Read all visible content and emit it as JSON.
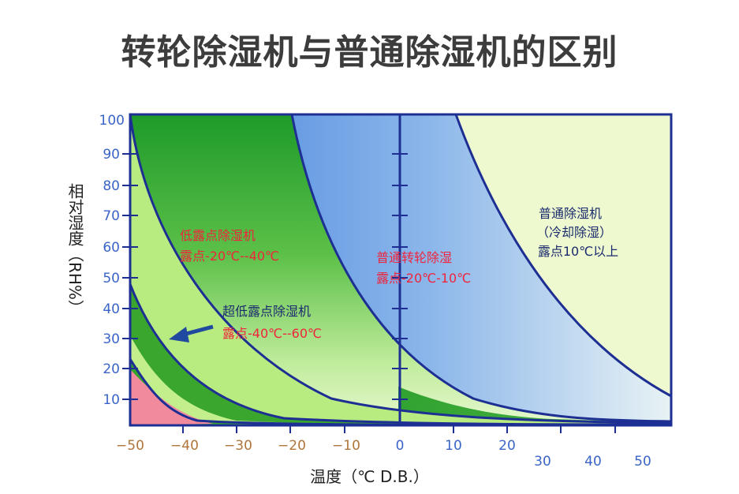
{
  "chart_data": {
    "type": "area",
    "title": "转轮除湿机与普通除湿机的区别",
    "xlabel": "温度（℃ D.B.）",
    "ylabel": "相对湿度（RH%）",
    "xlim": [
      -50,
      50
    ],
    "ylim": [
      0,
      100
    ],
    "x_ticks_row1": [
      "−50",
      "−40",
      "−30",
      "−20",
      "−10",
      "0",
      "10",
      "20"
    ],
    "x_ticks_row2": [
      "30",
      "40",
      "50"
    ],
    "y_ticks": [
      "100",
      "90",
      "80",
      "70",
      "60",
      "50",
      "40",
      "30",
      "20",
      "10"
    ],
    "regions": [
      {
        "name": "低露点除湿机",
        "label_line1": "低露点除湿机",
        "label_line2": "露点-20℃--40℃",
        "color": "#3aa832"
      },
      {
        "name": "超低露点除湿机",
        "label_line1": "超低露点除湿机",
        "label_line2": "露点-40℃--60℃",
        "color": "#b8ec7c"
      },
      {
        "name": "普通转轮除湿",
        "label_line1": "普通转轮除湿",
        "label_line2": "露点-20℃-10℃",
        "color": "#5b93e0"
      },
      {
        "name": "普通除湿机",
        "label_line1": "普通除湿机",
        "label_line2": "（冷却除湿）",
        "label_line3": "露点10℃以上",
        "color": "#eef9cf"
      }
    ],
    "colors": {
      "axis": "#1e2f93",
      "pink": "#f28a9e",
      "red_label": "#f0243c",
      "navy_label": "#1a2a6e",
      "tick_brown": "#b0753a",
      "tick_blue": "#3a64c8",
      "arrow": "#1f4aa0"
    }
  }
}
